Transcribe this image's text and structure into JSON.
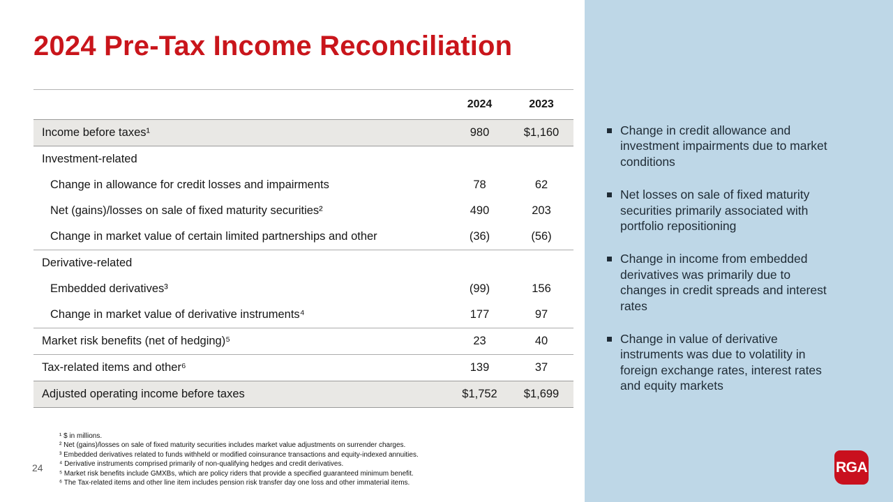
{
  "slide": {
    "title": "2024 Pre-Tax Income Reconciliation",
    "page_number": "24",
    "logo_text": "RGA"
  },
  "colors": {
    "title_red": "#C9151B",
    "panel_blue": "#BED7E7",
    "logo_red": "#C9101E",
    "row_shade": "#E9E8E5",
    "divider_gray": "#ABABAB",
    "body_text": "#161616",
    "bullet_text": "#1F2B35"
  },
  "table": {
    "columns": [
      "2024",
      "2023"
    ],
    "rows": [
      {
        "label": "Income before taxes¹",
        "v2024": "980",
        "v2023": "$1,160"
      },
      {
        "label": "Investment-related",
        "v2024": "",
        "v2023": ""
      },
      {
        "label": "Change in allowance for credit losses and impairments",
        "v2024": "78",
        "v2023": "62"
      },
      {
        "label": "Net (gains)/losses on sale of fixed maturity securities²",
        "v2024": "490",
        "v2023": "203"
      },
      {
        "label": "Change in market value of certain limited partnerships and other",
        "v2024": "(36)",
        "v2023": "(56)"
      },
      {
        "label": "Derivative-related",
        "v2024": "",
        "v2023": ""
      },
      {
        "label": "Embedded derivatives³",
        "v2024": "(99)",
        "v2023": "156"
      },
      {
        "label": "Change in market value of derivative instruments⁴",
        "v2024": "177",
        "v2023": "97"
      },
      {
        "label": "Market risk benefits (net of hedging)⁵",
        "v2024": "23",
        "v2023": "40"
      },
      {
        "label": "Tax-related items and other⁶",
        "v2024": "139",
        "v2023": "37"
      },
      {
        "label": "Adjusted operating income before taxes",
        "v2024": "$1,752",
        "v2023": "$1,699"
      }
    ]
  },
  "panel": {
    "bullets": [
      "Change in credit allowance and investment impairments due to market conditions",
      "Net losses on sale of fixed maturity securities primarily associated with portfolio repositioning",
      "Change in income from embedded derivatives was primarily due to changes in credit spreads and interest rates",
      "Change in value of derivative instruments was due to volatility in foreign exchange rates, interest rates and equity markets"
    ]
  },
  "footnotes": [
    "¹ $ in millions.",
    "² Net (gains)/losses on sale of fixed maturity securities includes market value adjustments on surrender charges.",
    "³ Embedded derivatives related to funds withheld or modified coinsurance transactions and equity-indexed annuities.",
    "⁴ Derivative instruments comprised primarily of non-qualifying hedges and credit derivatives.",
    "⁵ Market risk benefits include GMXBs, which are policy riders that provide a specified guaranteed minimum benefit.",
    "⁶ The Tax-related items and other line item includes pension risk transfer day one loss and other immaterial items."
  ]
}
